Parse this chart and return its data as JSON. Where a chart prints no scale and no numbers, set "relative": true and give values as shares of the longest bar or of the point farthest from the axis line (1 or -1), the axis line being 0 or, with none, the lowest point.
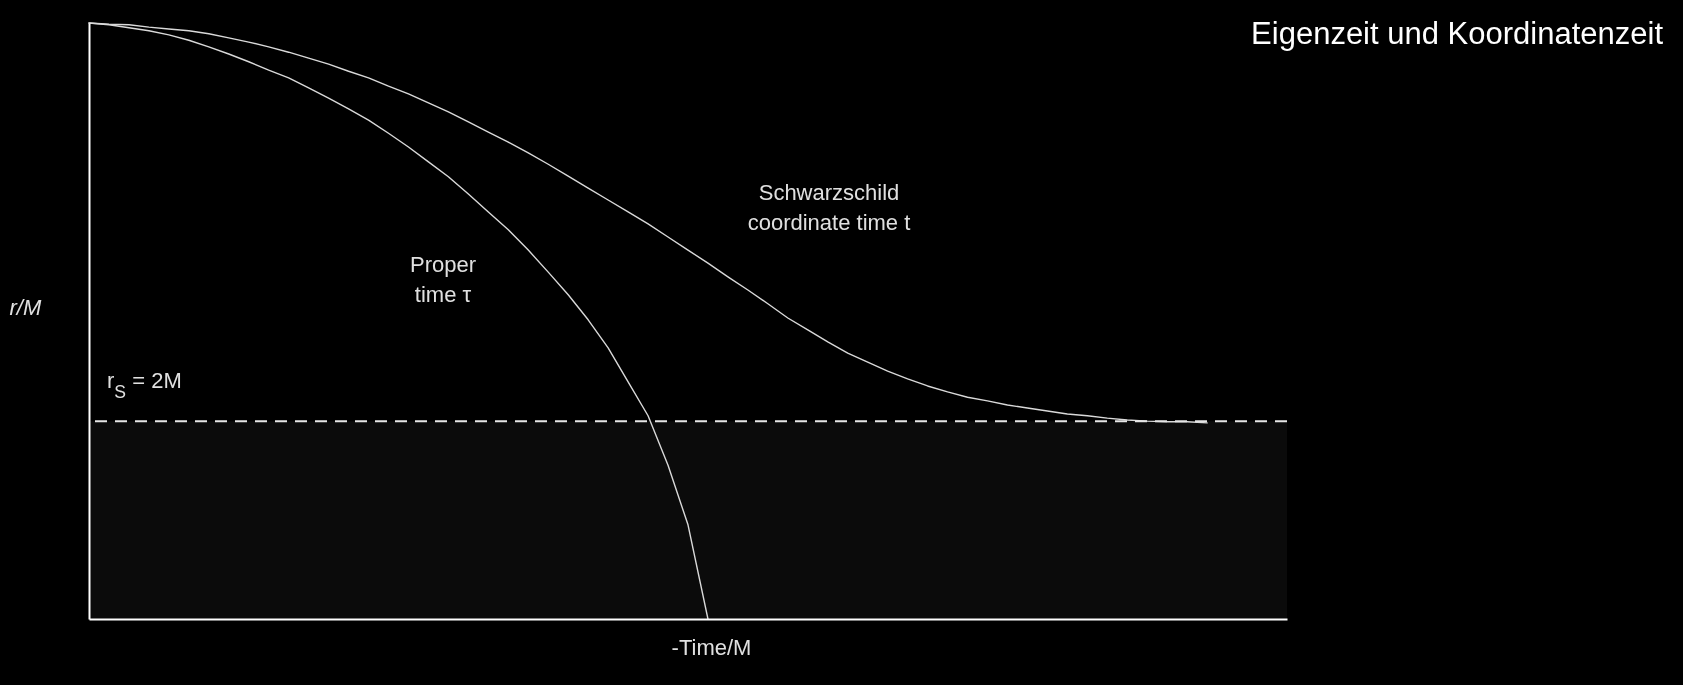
{
  "chart_data": {
    "type": "line",
    "title": "Eigenzeit und Koordinatenzeit",
    "xlabel": "-Time/M",
    "ylabel": "r/M",
    "relative": true,
    "legend": false,
    "categories": [
      null,
      null,
      null,
      null,
      null,
      null,
      null,
      null,
      null,
      null,
      null,
      null,
      null,
      null,
      null,
      null,
      null,
      null,
      null,
      null,
      null,
      null,
      null,
      null,
      null,
      null,
      null,
      null,
      null,
      null,
      null,
      null,
      null,
      null,
      null,
      null,
      null,
      null,
      null,
      null,
      null,
      null,
      null,
      null,
      null,
      null,
      null,
      null,
      null,
      null,
      null,
      null,
      null,
      null,
      null,
      null,
      null,
      null,
      null,
      null,
      null
    ],
    "series": [
      {
        "name": "Schwarzschild coordinate time t",
        "color": "#d9d9d9",
        "values": [
          1.0,
          0.998,
          0.997,
          0.993,
          0.99,
          0.987,
          0.982,
          0.975,
          0.968,
          0.96,
          0.951,
          0.941,
          0.931,
          0.919,
          0.908,
          0.894,
          0.881,
          0.866,
          0.851,
          0.834,
          0.817,
          0.8,
          0.782,
          0.763,
          0.743,
          0.723,
          0.703,
          0.683,
          0.663,
          0.641,
          0.619,
          0.597,
          0.574,
          0.552,
          0.529,
          0.505,
          0.485,
          0.465,
          0.446,
          0.431,
          0.416,
          0.403,
          0.391,
          0.381,
          0.372,
          0.366,
          0.359,
          0.354,
          0.349,
          0.344,
          0.341,
          0.337,
          0.334,
          0.332,
          0.331,
          0.331,
          0.329,
          null,
          null,
          null,
          null
        ]
      },
      {
        "name": "Proper time τ",
        "color": "#d9d9d9",
        "values": [
          1.0,
          0.997,
          0.992,
          0.987,
          0.98,
          0.971,
          0.96,
          0.948,
          0.935,
          0.921,
          0.908,
          0.891,
          0.874,
          0.856,
          0.837,
          0.815,
          0.792,
          0.767,
          0.742,
          0.713,
          0.683,
          0.653,
          0.619,
          0.582,
          0.544,
          0.502,
          0.455,
          0.398,
          0.341,
          0.258,
          0.158,
          0,
          null,
          null,
          null,
          null,
          null,
          null,
          null,
          null,
          null,
          null,
          null,
          null,
          null,
          null,
          null,
          null,
          null,
          null,
          null,
          null,
          null,
          null,
          null,
          null,
          null,
          null,
          null,
          null,
          null
        ]
      }
    ],
    "annotations": [
      "r$_{S}$ = 2M"
    ],
    "ref_lines": [
      {
        "axis": "y",
        "value": 0.332,
        "color": "#e6e6e6",
        "line_style": "dashed"
      }
    ],
    "bands": [
      {
        "axis": "y",
        "from": 0,
        "to": 0.332,
        "color": "#0b0b0b"
      }
    ]
  }
}
